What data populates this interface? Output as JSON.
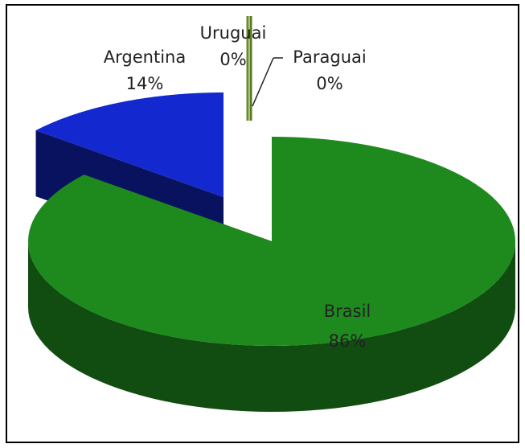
{
  "chart_data": {
    "type": "pie3d",
    "categories": [
      "Brasil",
      "Argentina",
      "Uruguai",
      "Paraguai"
    ],
    "values": [
      86,
      14,
      0,
      0
    ],
    "value_labels": [
      "86%",
      "14%",
      "0%",
      "0%"
    ],
    "colors": [
      "#1e8a1e",
      "#1428d0",
      "#6a8a2a",
      "#5a7a20"
    ]
  }
}
